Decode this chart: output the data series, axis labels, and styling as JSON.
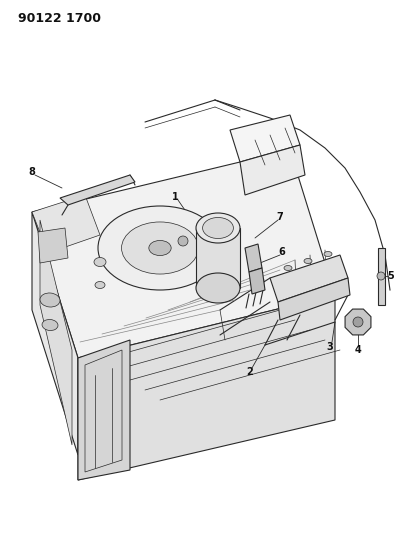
{
  "title_code": "90122 1700",
  "background_color": "#ffffff",
  "line_color": "#2a2a2a",
  "label_color": "#111111",
  "label_fontsize": 7.0,
  "fig_width": 3.94,
  "fig_height": 5.33,
  "dpi": 100
}
